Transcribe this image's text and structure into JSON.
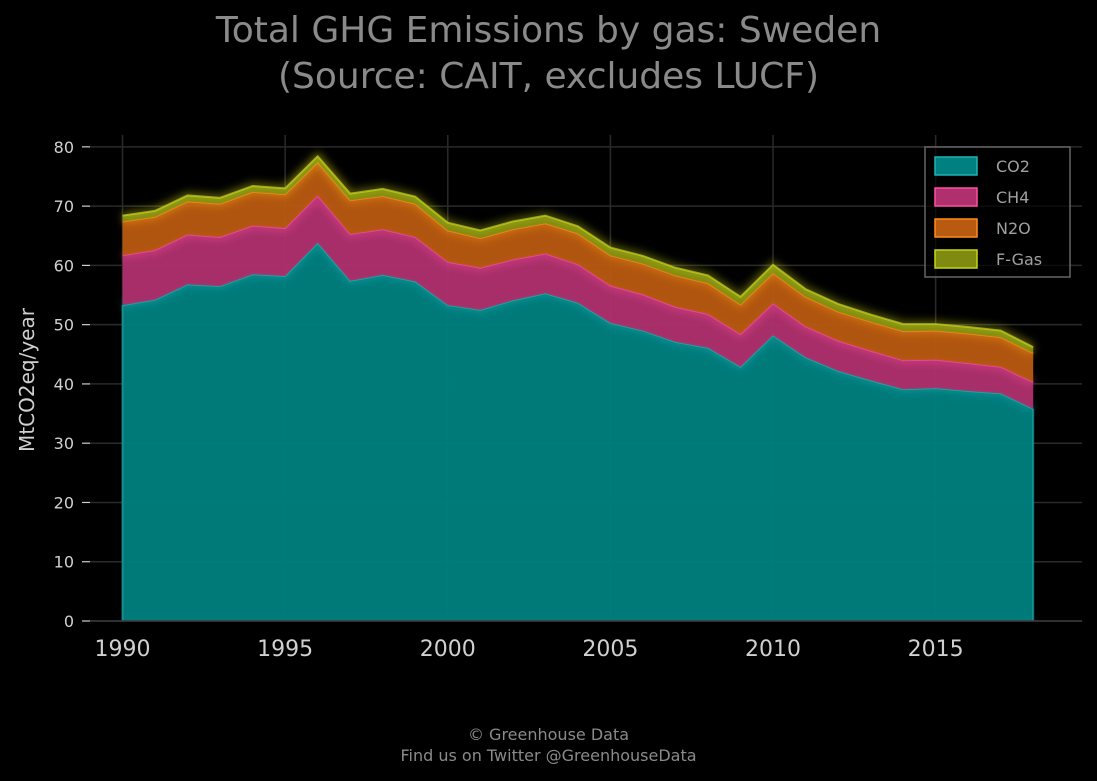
{
  "title_line1": "Total GHG Emissions by gas: Sweden",
  "title_line2": "(Source: CAIT, excludes LUCF)",
  "footer_line1": "© Greenhouse Data",
  "footer_line2": "Find us on Twitter @GreenhouseData",
  "chart_data": {
    "type": "area",
    "stacked": true,
    "title": "Total GHG Emissions by gas: Sweden (Source: CAIT, excludes LUCF)",
    "xlabel": "",
    "ylabel": "MtCO2eq/year",
    "xlim": [
      1989,
      2019.5
    ],
    "ylim": [
      0,
      82
    ],
    "grid": true,
    "legend_position": "top-right",
    "xticks": [
      1990,
      1995,
      2000,
      2005,
      2010,
      2015
    ],
    "yticks": [
      0,
      10,
      20,
      30,
      40,
      50,
      60,
      70,
      80
    ],
    "x": [
      1990,
      1991,
      1992,
      1993,
      1994,
      1995,
      1996,
      1997,
      1998,
      1999,
      2000,
      2001,
      2002,
      2003,
      2004,
      2005,
      2006,
      2007,
      2008,
      2009,
      2010,
      2011,
      2012,
      2013,
      2014,
      2015,
      2016,
      2017,
      2018
    ],
    "series": [
      {
        "name": "CO2",
        "color": "#008080",
        "line_color": "#20b2b2",
        "values": [
          53.3,
          54.2,
          56.8,
          56.5,
          58.5,
          58.2,
          63.8,
          57.4,
          58.4,
          57.3,
          53.3,
          52.5,
          54.1,
          55.3,
          53.7,
          50.3,
          49.0,
          47.1,
          46.1,
          42.9,
          48.2,
          44.5,
          42.2,
          40.6,
          39.1,
          39.3,
          38.8,
          38.4,
          35.8
        ]
      },
      {
        "name": "CH4",
        "color": "#b0306e",
        "line_color": "#ff4fa3",
        "values": [
          8.4,
          8.4,
          8.4,
          8.3,
          8.2,
          8.1,
          8.0,
          7.9,
          7.7,
          7.5,
          7.3,
          7.1,
          6.9,
          6.7,
          6.5,
          6.3,
          6.1,
          5.9,
          5.7,
          5.5,
          5.4,
          5.2,
          5.1,
          5.0,
          4.9,
          4.8,
          4.7,
          4.5,
          4.5
        ]
      },
      {
        "name": "N2O",
        "color": "#b85a10",
        "line_color": "#ff8c1a",
        "values": [
          5.7,
          5.6,
          5.6,
          5.6,
          5.7,
          5.7,
          5.6,
          5.7,
          5.6,
          5.6,
          5.3,
          5.0,
          5.1,
          5.1,
          5.2,
          5.1,
          5.2,
          5.3,
          5.2,
          5.0,
          5.1,
          5.0,
          4.9,
          4.9,
          4.9,
          4.9,
          5.0,
          5.0,
          4.9
        ]
      },
      {
        "name": "F-Gas",
        "color": "#7f8a10",
        "line_color": "#c7d41a",
        "values": [
          1.0,
          1.0,
          1.0,
          1.0,
          1.0,
          1.0,
          1.0,
          1.1,
          1.2,
          1.2,
          1.3,
          1.3,
          1.3,
          1.3,
          1.2,
          1.3,
          1.3,
          1.3,
          1.3,
          1.3,
          1.4,
          1.3,
          1.3,
          1.2,
          1.2,
          1.1,
          1.1,
          1.1,
          1.0
        ]
      }
    ]
  }
}
